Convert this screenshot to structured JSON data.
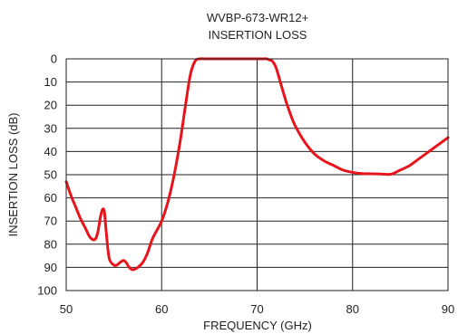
{
  "chart_data": {
    "type": "line",
    "title": "WVBP-673-WR12+",
    "subtitle": "INSERTION LOSS",
    "xlabel": "FREQUENCY (GHz)",
    "ylabel": "INSERTION LOSS (dB)",
    "xlim": [
      50,
      90
    ],
    "ylim": [
      0,
      100
    ],
    "y_inverted": true,
    "grid": true,
    "x_ticks": [
      50,
      60,
      70,
      80,
      90
    ],
    "y_ticks": [
      0,
      10,
      20,
      30,
      40,
      50,
      60,
      70,
      80,
      90,
      100
    ],
    "series": [
      {
        "color": "#e8141c",
        "x": [
          50,
          50.5,
          51,
          51.5,
          52,
          52.5,
          53,
          53.3,
          53.6,
          53.8,
          54,
          54.2,
          54.5,
          55,
          55.3,
          55.6,
          56,
          56.3,
          56.6,
          57,
          57.5,
          58,
          58.5,
          59,
          59.5,
          60,
          60.5,
          61,
          61.5,
          62,
          62.5,
          63,
          63.5,
          64,
          64.5,
          65,
          66,
          67,
          68,
          69,
          70,
          70.5,
          71,
          71.3,
          71.6,
          72,
          72.5,
          73,
          73.5,
          74,
          75,
          76,
          77,
          78,
          79,
          80,
          81,
          82,
          83,
          84,
          85,
          86,
          87,
          88,
          89,
          90
        ],
        "y": [
          53,
          59,
          64,
          69,
          73,
          77,
          78,
          75,
          68,
          65,
          66,
          75,
          86,
          89,
          89,
          88,
          87,
          88,
          90,
          91,
          90,
          88,
          84,
          78,
          74,
          70,
          64,
          56,
          46,
          34,
          20,
          7,
          1,
          0,
          0,
          0,
          0,
          0,
          0,
          0,
          0,
          0,
          0,
          0.5,
          1,
          4,
          11,
          18,
          24,
          29,
          36,
          41,
          44,
          46,
          48,
          49,
          49.5,
          49.6,
          49.7,
          49.8,
          48,
          46,
          43,
          40,
          37,
          34
        ]
      }
    ]
  }
}
